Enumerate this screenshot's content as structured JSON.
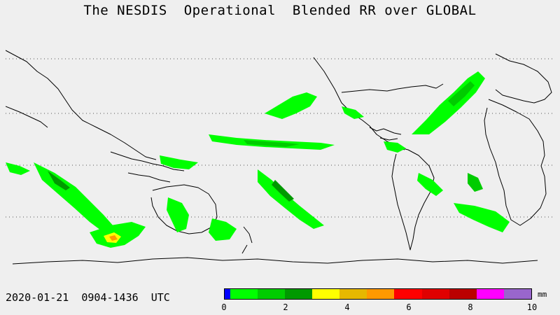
{
  "title": "The NESDIS  Operational  Blended RR over GLOBAL",
  "timestamp": "2020-01-21  0904-1436  UTC",
  "legend": {
    "units": "mm",
    "ticks": [
      "0",
      "2",
      "4",
      "6",
      "8",
      "10"
    ],
    "colors": [
      "#0000ff",
      "#00ff00",
      "#00cc00",
      "#009900",
      "#ffff00",
      "#e6b800",
      "#ff9900",
      "#ff0000",
      "#e00000",
      "#bb0000",
      "#ff00ff",
      "#9966cc"
    ]
  },
  "map": {
    "background": "#efefef",
    "coastline_color": "#000000",
    "gridline_color": "#555555"
  }
}
